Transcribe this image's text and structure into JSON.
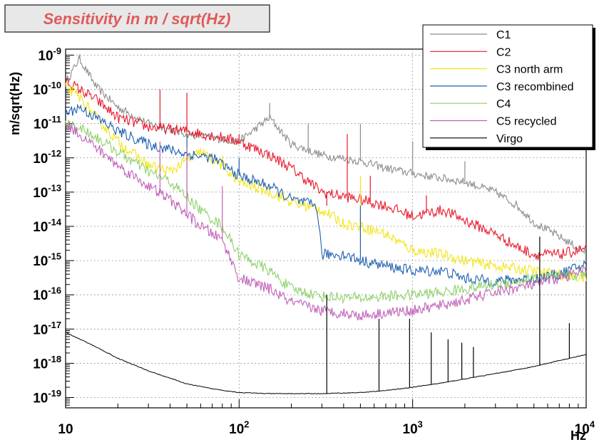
{
  "chart_data": {
    "type": "line",
    "title": "Sensitivity in m / sqrt(Hz)",
    "xlabel": "Hz",
    "ylabel": "m/sqrt(Hz)",
    "xscale": "log",
    "yscale": "log",
    "xlim": [
      10,
      10000
    ],
    "ylim": [
      5e-20,
      1.5e-09
    ],
    "grid": true,
    "legend_position": "top-right",
    "x_ticks": [
      {
        "value": 10,
        "base": "10",
        "exp": ""
      },
      {
        "value": 100,
        "base": "10",
        "exp": "2"
      },
      {
        "value": 1000,
        "base": "10",
        "exp": "3"
      },
      {
        "value": 10000,
        "base": "10",
        "exp": "4"
      }
    ],
    "y_ticks": [
      {
        "value": 1e-19,
        "base": "10",
        "exp": "-19"
      },
      {
        "value": 1e-18,
        "base": "10",
        "exp": "-18"
      },
      {
        "value": 1e-17,
        "base": "10",
        "exp": "-17"
      },
      {
        "value": 1e-16,
        "base": "10",
        "exp": "-16"
      },
      {
        "value": 1e-15,
        "base": "10",
        "exp": "-15"
      },
      {
        "value": 1e-14,
        "base": "10",
        "exp": "-14"
      },
      {
        "value": 1e-13,
        "base": "10",
        "exp": "-13"
      },
      {
        "value": 1e-12,
        "base": "10",
        "exp": "-12"
      },
      {
        "value": 1e-11,
        "base": "10",
        "exp": "-11"
      },
      {
        "value": 1e-10,
        "base": "10",
        "exp": "-10"
      },
      {
        "value": 1e-09,
        "base": "10",
        "exp": "-9"
      }
    ],
    "series": [
      {
        "name": "C1",
        "color": "#8c8c8c",
        "x": [
          10,
          12,
          15,
          20,
          30,
          50,
          80,
          100,
          150,
          200,
          300,
          500,
          700,
          1000,
          1500,
          2000,
          3000,
          4000,
          5000,
          7000,
          10000
        ],
        "y": [
          1.5e-10,
          8e-10,
          1.2e-10,
          3e-11,
          1e-11,
          5e-12,
          3.5e-12,
          3e-12,
          1.5e-11,
          2.5e-12,
          1.2e-12,
          8e-13,
          5e-13,
          3.5e-13,
          2.5e-13,
          2e-13,
          1e-13,
          4e-14,
          1.3e-14,
          5e-15,
          1.7e-15
        ],
        "spikes": [
          {
            "x": 12,
            "y": 1e-09
          },
          {
            "x": 50,
            "y": 1e-11
          },
          {
            "x": 150,
            "y": 4e-11
          },
          {
            "x": 250,
            "y": 1e-11
          },
          {
            "x": 500,
            "y": 1e-11
          },
          {
            "x": 1000,
            "y": 3e-12
          },
          {
            "x": 2000,
            "y": 8e-13
          }
        ]
      },
      {
        "name": "C2",
        "color": "#e8192c",
        "x": [
          10,
          12,
          15,
          20,
          30,
          50,
          80,
          100,
          150,
          200,
          300,
          500,
          700,
          1000,
          1500,
          2000,
          3000,
          4000,
          5000,
          7000,
          10000
        ],
        "y": [
          1.8e-10,
          1e-10,
          5e-11,
          1.5e-11,
          8e-12,
          6e-12,
          4e-12,
          3e-12,
          1.2e-12,
          5e-13,
          1e-13,
          6e-14,
          4e-14,
          2e-14,
          3e-14,
          1.5e-14,
          6e-15,
          2.5e-15,
          1.5e-15,
          1.5e-15,
          2.2e-15
        ],
        "spikes": [
          {
            "x": 35,
            "y": 1e-10
          },
          {
            "x": 50,
            "y": 8e-11
          },
          {
            "x": 100,
            "y": 5e-12
          },
          {
            "x": 320,
            "y": 4e-14
          },
          {
            "x": 420,
            "y": 5e-12
          },
          {
            "x": 570,
            "y": 3e-13
          },
          {
            "x": 1200,
            "y": 8e-14
          }
        ]
      },
      {
        "name": "C3 north arm",
        "color": "#f2e61a",
        "x": [
          10,
          12,
          15,
          20,
          30,
          40,
          60,
          80,
          100,
          150,
          200,
          300,
          400,
          500,
          700,
          1000,
          1500,
          2000,
          3000,
          5000,
          10000
        ],
        "y": [
          1.2e-10,
          6e-11,
          1.5e-11,
          3e-12,
          6e-13,
          4e-13,
          1.5e-12,
          6e-13,
          2e-13,
          1e-13,
          5e-14,
          3e-14,
          1.2e-14,
          1e-14,
          6e-15,
          2e-15,
          1.5e-15,
          1e-15,
          7e-16,
          5e-16,
          3e-16
        ],
        "spikes": [
          {
            "x": 35,
            "y": 3e-12
          },
          {
            "x": 50,
            "y": 6e-12
          },
          {
            "x": 80,
            "y": 1.2e-12
          },
          {
            "x": 500,
            "y": 3e-13
          }
        ]
      },
      {
        "name": "C3 recombined",
        "color": "#1f5fb0",
        "x": [
          10,
          12,
          15,
          20,
          30,
          50,
          70,
          100,
          150,
          200,
          280,
          300,
          400,
          500,
          700,
          1000,
          1500,
          2000,
          3000,
          5000,
          7000,
          10000
        ],
        "y": [
          2e-11,
          3e-11,
          1.5e-11,
          6e-12,
          2.5e-12,
          1.3e-12,
          1e-12,
          3e-13,
          1.5e-13,
          6e-14,
          4e-14,
          1.5e-15,
          1.5e-15,
          1e-15,
          7e-16,
          5e-16,
          5e-16,
          3e-16,
          2.5e-16,
          3e-16,
          4e-16,
          8e-16
        ],
        "spikes": [
          {
            "x": 50,
            "y": 5e-12
          },
          {
            "x": 100,
            "y": 1e-12
          },
          {
            "x": 500,
            "y": 4e-14
          }
        ]
      },
      {
        "name": "C4",
        "color": "#8fd16b",
        "x": [
          10,
          12,
          15,
          20,
          30,
          40,
          60,
          80,
          100,
          150,
          200,
          300,
          500,
          700,
          1000,
          1500,
          2000,
          3000,
          5000,
          10000
        ],
        "y": [
          1e-11,
          8e-12,
          4e-12,
          1.5e-12,
          4e-13,
          2e-13,
          3e-14,
          1e-14,
          1.5e-15,
          5e-16,
          1.5e-16,
          9e-17,
          8e-17,
          9e-17,
          1e-16,
          1.2e-16,
          1.5e-16,
          2e-16,
          3e-16,
          4e-16
        ],
        "spikes": [
          {
            "x": 50,
            "y": 1e-12
          },
          {
            "x": 80,
            "y": 1e-14
          },
          {
            "x": 150,
            "y": 5e-16
          }
        ]
      },
      {
        "name": "C5 recycled",
        "color": "#c060b8",
        "x": [
          10,
          12,
          15,
          20,
          30,
          40,
          60,
          80,
          100,
          150,
          200,
          300,
          500,
          700,
          1000,
          1500,
          2000,
          3000,
          5000,
          10000
        ],
        "y": [
          1e-11,
          5e-12,
          2e-12,
          6e-13,
          1.5e-13,
          6e-14,
          1e-14,
          4e-15,
          3e-16,
          1.5e-16,
          6e-17,
          3.5e-17,
          2.5e-17,
          3e-17,
          3.5e-17,
          5e-17,
          7e-17,
          1.2e-16,
          2e-16,
          5e-16
        ],
        "spikes": [
          {
            "x": 35,
            "y": 3e-12
          },
          {
            "x": 50,
            "y": 2e-12
          },
          {
            "x": 80,
            "y": 1.5e-13
          },
          {
            "x": 150,
            "y": 2e-16
          }
        ]
      },
      {
        "name": "Virgo",
        "color": "#000000",
        "x": [
          10,
          15,
          20,
          30,
          50,
          70,
          100,
          150,
          200,
          300,
          500,
          700,
          1000,
          1500,
          2000,
          3000,
          5000,
          7000,
          10000
        ],
        "y": [
          8e-18,
          3e-18,
          1.4e-18,
          6e-19,
          2.5e-19,
          1.8e-19,
          1.4e-19,
          1.3e-19,
          1.3e-19,
          1.3e-19,
          1.4e-19,
          1.6e-19,
          2e-19,
          2.7e-19,
          3.5e-19,
          5e-19,
          8e-19,
          1.2e-18,
          1.8e-18
        ],
        "spikes": [
          {
            "x": 320,
            "y": 1e-16
          },
          {
            "x": 640,
            "y": 2e-17
          },
          {
            "x": 960,
            "y": 2e-17
          },
          {
            "x": 1280,
            "y": 8e-18
          },
          {
            "x": 1600,
            "y": 5e-18
          },
          {
            "x": 1920,
            "y": 4e-18
          },
          {
            "x": 2240,
            "y": 3e-18
          },
          {
            "x": 5400,
            "y": 5e-15
          },
          {
            "x": 8000,
            "y": 1.5e-17
          }
        ]
      }
    ]
  }
}
